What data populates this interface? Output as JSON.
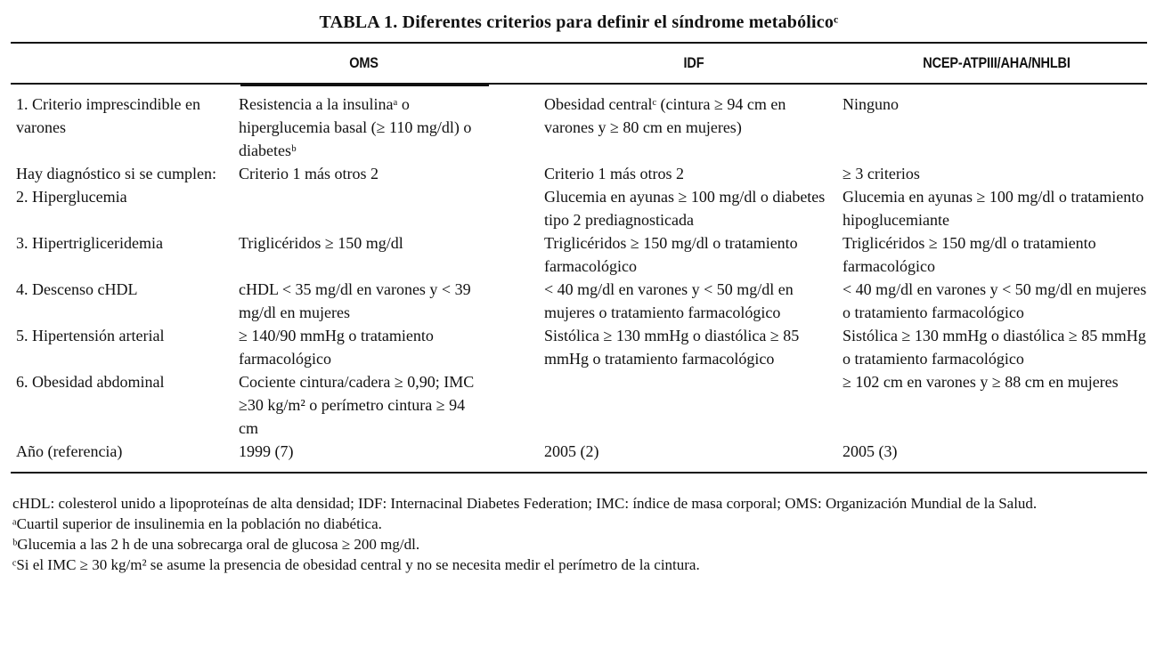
{
  "title": "TABLA 1. Diferentes criterios para definir el síndrome metabólicoᶜ",
  "table": {
    "headers": {
      "criterion": "",
      "oms": "OMS",
      "idf": "IDF",
      "ncep": "NCEP-ATPIII/AHA/NHLBI"
    },
    "rows": [
      {
        "label": "1. Criterio imprescindible en varones",
        "oms": "Resistencia a la insulinaᵃ o hiperglucemia basal (≥ 110 mg/dl) o diabetesᵇ",
        "idf": "Obesidad centralᶜ (cintura ≥ 94 cm en varones y ≥ 80 cm en mujeres)",
        "ncep": "Ninguno"
      },
      {
        "label": "Hay diagnóstico si se cumplen:",
        "oms": "Criterio 1 más otros 2",
        "idf": "Criterio 1 más otros 2",
        "ncep": "≥ 3 criterios"
      },
      {
        "label": "2. Hiperglucemia",
        "oms": "",
        "idf": "Glucemia en ayunas ≥ 100 mg/dl o diabetes tipo 2 prediagnosticada",
        "ncep": "Glucemia en ayunas ≥ 100 mg/dl o tratamiento hipoglucemiante"
      },
      {
        "label": "3. Hipertrigliceridemia",
        "oms": "Triglicéridos ≥ 150 mg/dl",
        "idf": "Triglicéridos ≥ 150 mg/dl o tratamiento farmacológico",
        "ncep": "Triglicéridos ≥ 150 mg/dl o tratamiento farmacológico"
      },
      {
        "label": "4. Descenso cHDL",
        "oms": "cHDL < 35 mg/dl en varones y < 39 mg/dl en mujeres",
        "idf": "< 40 mg/dl en varones y < 50 mg/dl en mujeres o tratamiento farmacológico",
        "ncep": "< 40 mg/dl en varones y < 50 mg/dl en mujeres o tratamiento farmacológico"
      },
      {
        "label": "5. Hipertensión arterial",
        "oms": "≥ 140/90 mmHg o tratamiento farmacológico",
        "idf": "Sistólica ≥ 130 mmHg o diastólica ≥ 85 mmHg o tratamiento farmacológico",
        "ncep": "Sistólica ≥ 130 mmHg o diastólica ≥ 85 mmHg o tratamiento farmacológico"
      },
      {
        "label": "6. Obesidad abdominal",
        "oms": "Cociente cintura/cadera ≥ 0,90; IMC ≥30 kg/m² o perímetro cintura ≥ 94 cm",
        "idf": "",
        "ncep": "≥ 102 cm en varones y ≥ 88 cm en mujeres"
      },
      {
        "label": "Año (referencia)",
        "oms": "1999 (7)",
        "idf": "2005 (2)",
        "ncep": "2005 (3)"
      }
    ]
  },
  "footnotes": [
    "cHDL: colesterol unido a lipoproteínas de alta densidad; IDF: Internacinal Diabetes Federation; IMC: índice de masa corporal; OMS: Organización Mundial de la Salud.",
    "ᵃCuartil superior de insulinemia en la población no diabética.",
    "ᵇGlucemia a las 2 h de una sobrecarga oral de glucosa ≥ 200 mg/dl.",
    "ᶜSi el IMC ≥ 30 kg/m² se asume la presencia de obesidad central y no se necesita medir el perímetro de la cintura."
  ],
  "colors": {
    "text": "#111111",
    "background": "#ffffff",
    "rule": "#111111"
  }
}
